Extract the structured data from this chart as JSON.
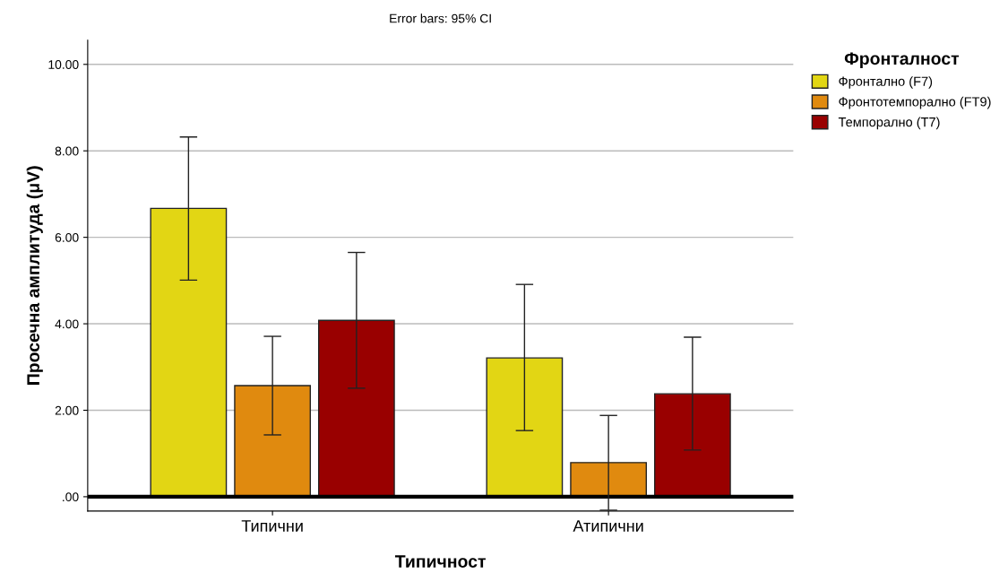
{
  "chart_data": {
    "type": "bar",
    "title": "Error bars: 95% CI",
    "xlabel": "Типичност",
    "ylabel": "Просечна амплитуда (μV)",
    "legend_title": "Фронталност",
    "categories": [
      "Типични",
      "Атипични"
    ],
    "series": [
      {
        "name": "Фронтално (F7)",
        "color": "#e2d614",
        "values": [
          6.67,
          3.21
        ],
        "errors": [
          [
            5.01,
            8.32
          ],
          [
            1.53,
            4.91
          ]
        ]
      },
      {
        "name": "Фронтотемпорално (FT9)",
        "color": "#e08a0f",
        "values": [
          2.57,
          0.79
        ],
        "errors": [
          [
            1.43,
            3.71
          ],
          [
            -0.31,
            1.88
          ]
        ]
      },
      {
        "name": "Темпорално (T7)",
        "color": "#990000",
        "values": [
          4.08,
          2.38
        ],
        "errors": [
          [
            2.51,
            5.65
          ],
          [
            1.08,
            3.69
          ]
        ]
      }
    ],
    "ylim": [
      -0.33,
      10.56
    ],
    "yticks": [
      {
        "value": 0,
        "label": ".00"
      },
      {
        "value": 2,
        "label": "2.00"
      },
      {
        "value": 4,
        "label": "4.00"
      },
      {
        "value": 6,
        "label": "6.00"
      },
      {
        "value": 8,
        "label": "8.00"
      },
      {
        "value": 10,
        "label": "10.00"
      }
    ],
    "ref_lines": [
      {
        "axis": "y",
        "value": 0,
        "color": "#000000"
      }
    ],
    "grid": "y",
    "legend": "top right"
  }
}
